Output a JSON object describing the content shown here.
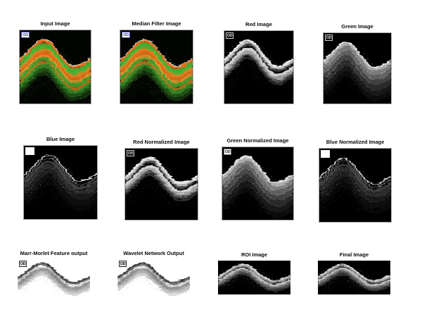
{
  "figure": {
    "description": "OCT retinal image processing pipeline montage",
    "rows": 3,
    "cols": 4
  },
  "colors": {
    "figure_bg": "#ffffff",
    "panel_bg_dark": "#020402",
    "panel_bg_light": "#ffffff",
    "title_color": "#0a0a12",
    "badge_blue": "#4348c8",
    "frame_border": "#a9a9a9"
  },
  "panels": [
    {
      "id": "input-image",
      "title": "Input Image",
      "type": "oct-color",
      "badge": {
        "text": "OD",
        "variant": "blue-on-white"
      }
    },
    {
      "id": "median-filter-image",
      "title": "Median Filter Image",
      "type": "oct-color",
      "badge": {
        "text": "OD",
        "variant": "blue-on-white"
      }
    },
    {
      "id": "red-image",
      "title": "Red Image",
      "type": "oct-gray-two-band",
      "badge": {
        "text": "OD",
        "variant": "outline-on-black"
      }
    },
    {
      "id": "green-image",
      "title": "Green Image",
      "type": "oct-gray-diffuse",
      "badge": {
        "text": "OD",
        "variant": "outline-on-black"
      }
    },
    {
      "id": "blue-image",
      "title": "Blue Image",
      "type": "oct-gray-faint",
      "badge": {
        "text": "",
        "variant": "white-square"
      }
    },
    {
      "id": "red-normalized-image",
      "title": "Red Normalized Image",
      "type": "oct-gray-two-band",
      "badge": {
        "text": "OD",
        "variant": "outline-on-black"
      }
    },
    {
      "id": "green-normalized-image",
      "title": "Green Normalized Image",
      "type": "oct-gray-diffuse",
      "badge": {
        "text": "OD",
        "variant": "dark-on-white"
      }
    },
    {
      "id": "blue-normalized-image",
      "title": "Blue Normalized Image",
      "type": "oct-gray-faint",
      "badge": {
        "text": "",
        "variant": "white-square"
      }
    },
    {
      "id": "marr-morlet-feature-output",
      "title": "Marr-Morlet Feature output",
      "type": "sketch",
      "badge": {
        "text": "OD",
        "variant": "dark-on-light"
      }
    },
    {
      "id": "wavelet-network-output",
      "title": "Wavelet Network Output",
      "type": "sketch",
      "badge": {
        "text": "OD",
        "variant": "dark-on-light"
      }
    },
    {
      "id": "roi-image",
      "title": "ROI Image",
      "type": "oct-gray-crop",
      "badge": null
    },
    {
      "id": "final-image",
      "title": "Final Image",
      "type": "oct-gray-crop",
      "badge": null
    }
  ]
}
